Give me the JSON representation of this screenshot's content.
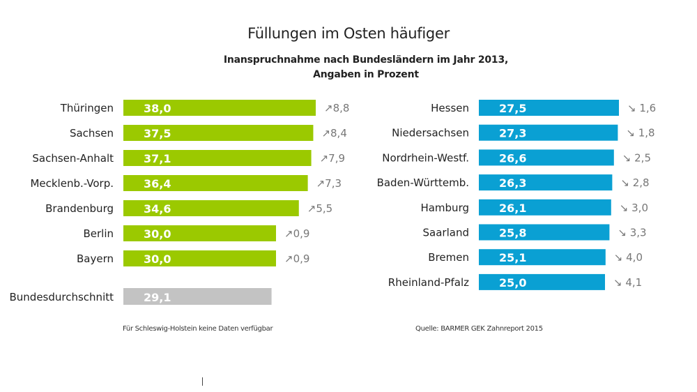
{
  "chart_data": {
    "type": "bar",
    "orientation": "horizontal",
    "title": "Füllungen im Osten häufiger",
    "subtitle": "Inanspruchnahme nach Bundesländern im Jahr 2013,\nAngaben in Prozent",
    "unit": "Prozent",
    "groups": [
      {
        "name": "above-average",
        "color": "#9bc900",
        "trend": "up",
        "categories": [
          "Thüringen",
          "Sachsen",
          "Sachsen-Anhalt",
          "Mecklenb.-Vorp.",
          "Brandenburg",
          "Berlin",
          "Bayern"
        ],
        "values": [
          38.0,
          37.5,
          37.1,
          36.4,
          34.6,
          30.0,
          30.0
        ],
        "value_labels": [
          "38,0",
          "37,5",
          "37,1",
          "36,4",
          "34,6",
          "30,0",
          "30,0"
        ],
        "change_labels": [
          "8,8",
          "8,4",
          "7,9",
          "7,3",
          "5,5",
          "0,9",
          "0,9"
        ]
      },
      {
        "name": "below-average",
        "color": "#0aa0d3",
        "trend": "down",
        "categories": [
          "Hessen",
          "Niedersachsen",
          "Nordrhein-Westf.",
          "Baden-Württemb.",
          "Hamburg",
          "Saarland",
          "Bremen",
          "Rheinland-Pfalz"
        ],
        "values": [
          27.5,
          27.3,
          26.6,
          26.3,
          26.1,
          25.8,
          25.1,
          25.0
        ],
        "value_labels": [
          "27,5",
          "27,3",
          "26,6",
          "26,3",
          "26,1",
          "25,8",
          "25,1",
          "25,0"
        ],
        "change_labels": [
          "1,6",
          "1,8",
          "2,5",
          "2,8",
          "3,0",
          "3,3",
          "4,0",
          "4,1"
        ]
      }
    ],
    "average": {
      "label": "Bundesdurchschnitt",
      "value": 29.1,
      "value_label": "29,1",
      "color": "#c3c3c3"
    },
    "trend_symbols": {
      "up": "↗",
      "down": "↘"
    },
    "xlim": [
      0,
      38.0
    ],
    "grid": false,
    "legend": "none"
  },
  "footer": {
    "note": "Für Schleswig-Holstein keine Daten verfügbar",
    "source": "Quelle: BARMER GEK Zahnreport 2015"
  }
}
